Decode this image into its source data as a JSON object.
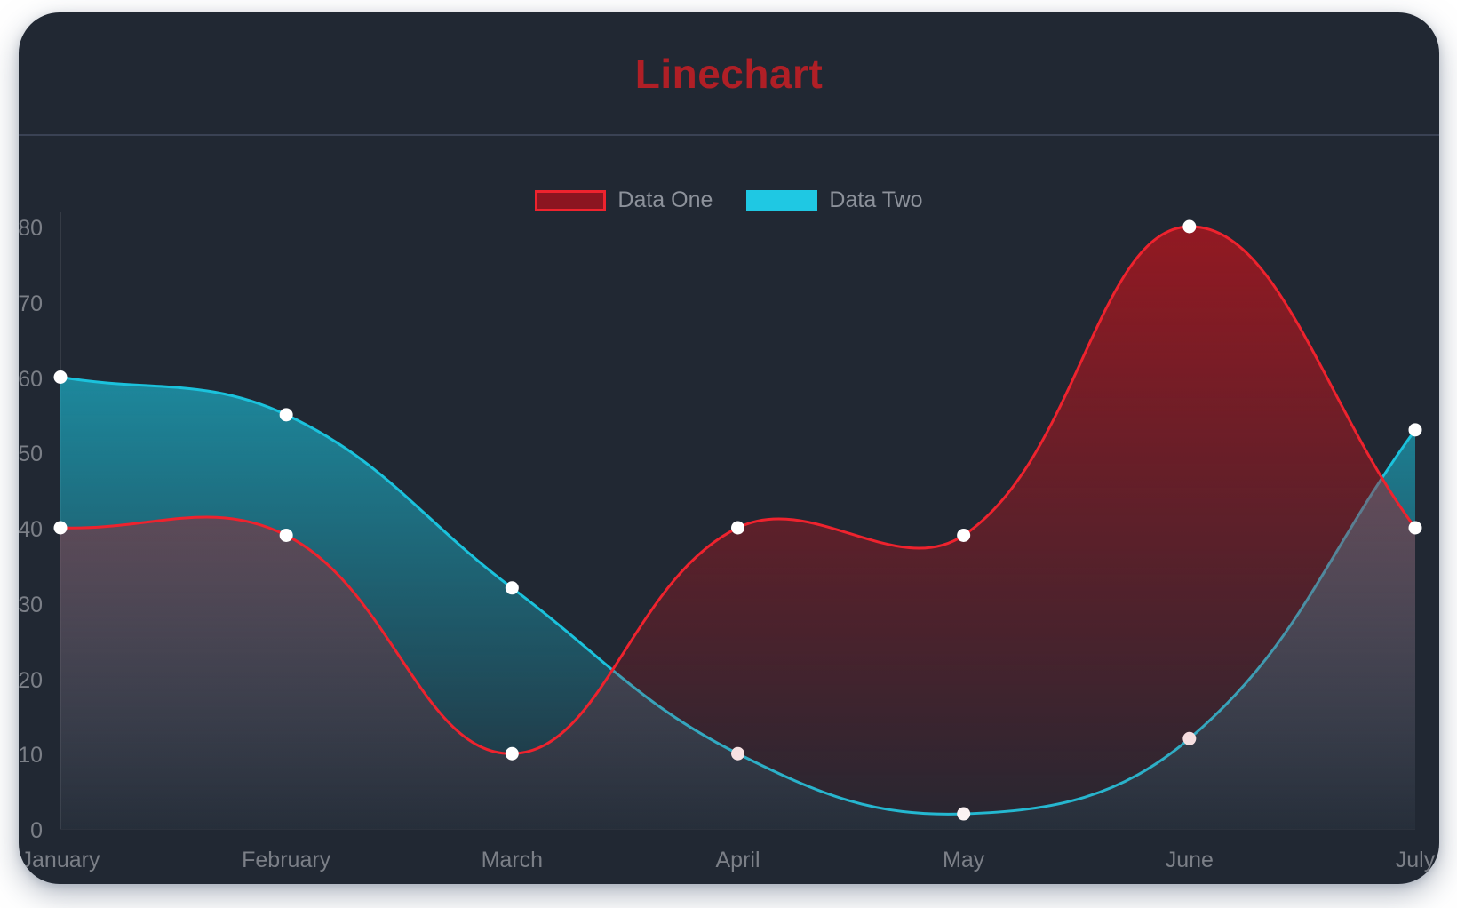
{
  "header": {
    "title": "Linechart",
    "title_color": "#b01f26"
  },
  "legend": {
    "text_color": "#8d929b",
    "items": [
      {
        "label": "Data One",
        "swatch_fill": "#8b1520",
        "swatch_border": "#ee232e"
      },
      {
        "label": "Data Two",
        "swatch_fill": "#1fc8e3",
        "swatch_border": "#1fc8e3"
      }
    ]
  },
  "chart_data": {
    "type": "line",
    "title": "Linechart",
    "categories": [
      "January",
      "February",
      "March",
      "April",
      "May",
      "June",
      "July"
    ],
    "series": [
      {
        "name": "Data One",
        "values": [
          40,
          39,
          10,
          40,
          39,
          80,
          40
        ],
        "line_color": "#ee232e",
        "fill_rgb": [
          190,
          20,
          28
        ],
        "fill_alpha_top": 0.72,
        "fill_alpha_bottom": 0.04,
        "z_order": "front"
      },
      {
        "name": "Data Two",
        "values": [
          60,
          55,
          32,
          10,
          2,
          12,
          53
        ],
        "line_color": "#1bc2dc",
        "fill_rgb": [
          27,
          194,
          220
        ],
        "fill_alpha_top": 0.82,
        "fill_alpha_bottom": 0.05,
        "z_order": "back"
      }
    ],
    "ylim": [
      0,
      80
    ],
    "yticks": [
      0,
      10,
      20,
      30,
      40,
      50,
      60,
      70,
      80
    ],
    "grid": false,
    "legend_position": "top",
    "curve": "smooth",
    "fill_to_zero": true,
    "point_color": "#ffffff",
    "point_radius": 7.5,
    "axis_text_color": "#7b7f87",
    "axis_line_color": "rgba(255,255,255,0.09)",
    "background": "#212833"
  }
}
